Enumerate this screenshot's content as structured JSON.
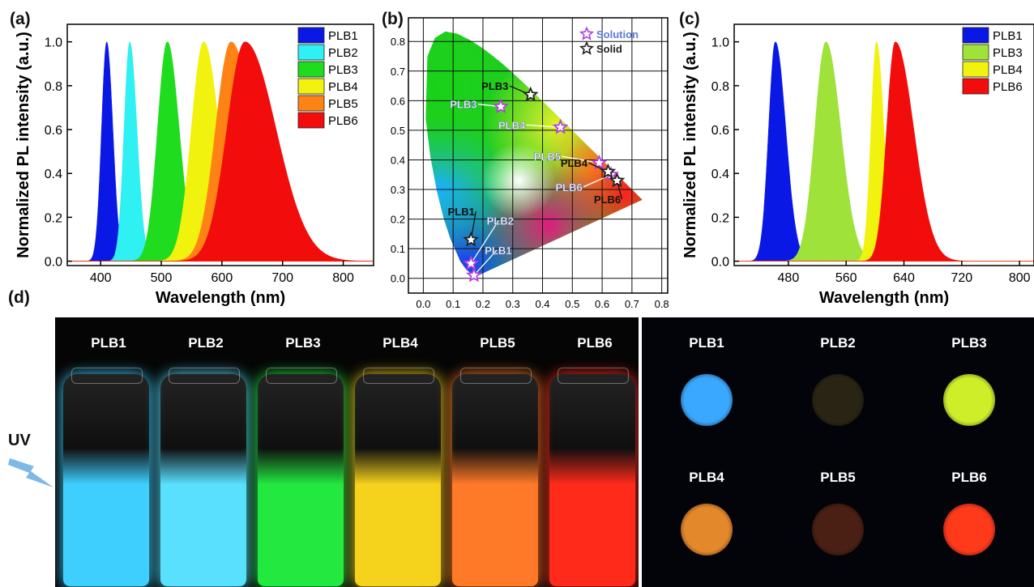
{
  "panels": {
    "a": "(a)",
    "b": "(b)",
    "c": "(c)",
    "d": "(d)"
  },
  "colors": {
    "PLB1": "#0a18e6",
    "PLB2": "#2ff0f3",
    "PLB3": "#1fdc1f",
    "PLB4": "#f2f20f",
    "PLB5": "#ff8214",
    "PLB6": "#f20c0c",
    "PLB3_c": "#9ee23a"
  },
  "chart_data": [
    {
      "id": "a",
      "type": "area",
      "xlabel": "Wavelength (nm)",
      "ylabel": "Normalized PL intensity (a.u.)",
      "xlim": [
        345,
        850
      ],
      "ylim": [
        -0.02,
        1.08
      ],
      "xticks": [
        400,
        500,
        600,
        700,
        800
      ],
      "yticks": [
        0.0,
        0.2,
        0.4,
        0.6,
        0.8,
        1.0
      ],
      "legend": "top-right",
      "series": [
        {
          "name": "PLB1",
          "peak": 410,
          "fwhm_left": 20,
          "fwhm_right": 24
        },
        {
          "name": "PLB2",
          "peak": 448,
          "fwhm_left": 22,
          "fwhm_right": 28
        },
        {
          "name": "PLB3",
          "peak": 510,
          "fwhm_left": 38,
          "fwhm_right": 46
        },
        {
          "name": "PLB4",
          "peak": 570,
          "fwhm_left": 48,
          "fwhm_right": 60
        },
        {
          "name": "PLB5",
          "peak": 615,
          "fwhm_left": 60,
          "fwhm_right": 90
        },
        {
          "name": "PLB6",
          "peak": 638,
          "fwhm_left": 70,
          "fwhm_right": 120
        }
      ]
    },
    {
      "id": "b",
      "type": "scatter",
      "xlim": [
        -0.05,
        0.82
      ],
      "ylim": [
        -0.05,
        0.88
      ],
      "xticks": [
        0.0,
        0.1,
        0.2,
        0.3,
        0.4,
        0.5,
        0.6,
        0.7,
        0.8
      ],
      "yticks": [
        0.0,
        0.1,
        0.2,
        0.3,
        0.4,
        0.5,
        0.6,
        0.7,
        0.8
      ],
      "legend": "top-right",
      "series": [
        {
          "name": "Solution",
          "color": "#b040e0",
          "points": [
            {
              "label": "PLB1",
              "x": 0.17,
              "y": 0.01
            },
            {
              "label": "PLB2",
              "x": 0.16,
              "y": 0.05
            },
            {
              "label": "PLB3",
              "x": 0.26,
              "y": 0.58
            },
            {
              "label": "PLB4",
              "x": 0.46,
              "y": 0.51
            },
            {
              "label": "PLB5",
              "x": 0.59,
              "y": 0.39
            },
            {
              "label": "PLB6",
              "x": 0.63,
              "y": 0.35
            }
          ]
        },
        {
          "name": "Solid",
          "color": "#222222",
          "points": [
            {
              "label": "PLB1",
              "x": 0.16,
              "y": 0.13
            },
            {
              "label": "PLB3",
              "x": 0.36,
              "y": 0.62
            },
            {
              "label": "PLB4",
              "x": 0.62,
              "y": 0.36
            },
            {
              "label": "PLB6",
              "x": 0.65,
              "y": 0.33
            }
          ]
        }
      ]
    },
    {
      "id": "c",
      "type": "area",
      "xlabel": "Wavelength (nm)",
      "ylabel": "Normalized PL intensity (a.u.)",
      "xlim": [
        405,
        820
      ],
      "ylim": [
        -0.02,
        1.08
      ],
      "xticks": [
        480,
        560,
        640,
        720,
        800
      ],
      "yticks": [
        0.0,
        0.2,
        0.4,
        0.6,
        0.8,
        1.0
      ],
      "legend": "top-right",
      "series": [
        {
          "name": "PLB1",
          "peak": 462,
          "fwhm_left": 22,
          "fwhm_right": 34
        },
        {
          "name": "PLB3",
          "peak": 532,
          "fwhm_left": 36,
          "fwhm_right": 48
        },
        {
          "name": "PLB4",
          "peak": 602,
          "fwhm_left": 18,
          "fwhm_right": 24
        },
        {
          "name": "PLB6",
          "peak": 628,
          "fwhm_left": 28,
          "fwhm_right": 60
        }
      ]
    }
  ],
  "photos": {
    "uv_label": "UV",
    "solution_vials": [
      {
        "label": "PLB1",
        "color": "#3ecfff"
      },
      {
        "label": "PLB2",
        "color": "#59e0ff"
      },
      {
        "label": "PLB3",
        "color": "#22e840"
      },
      {
        "label": "PLB4",
        "color": "#f5d21c"
      },
      {
        "label": "PLB5",
        "color": "#ff7a28"
      },
      {
        "label": "PLB6",
        "color": "#ff2a1a"
      }
    ],
    "solid_samples": [
      {
        "label": "PLB1",
        "color": "#3aa8ff"
      },
      {
        "label": "PLB2",
        "color": "#2a2415"
      },
      {
        "label": "PLB3",
        "color": "#cfee2a"
      },
      {
        "label": "PLB4",
        "color": "#e4882c"
      },
      {
        "label": "PLB5",
        "color": "#4a2014"
      },
      {
        "label": "PLB6",
        "color": "#ff3a1a"
      }
    ]
  }
}
